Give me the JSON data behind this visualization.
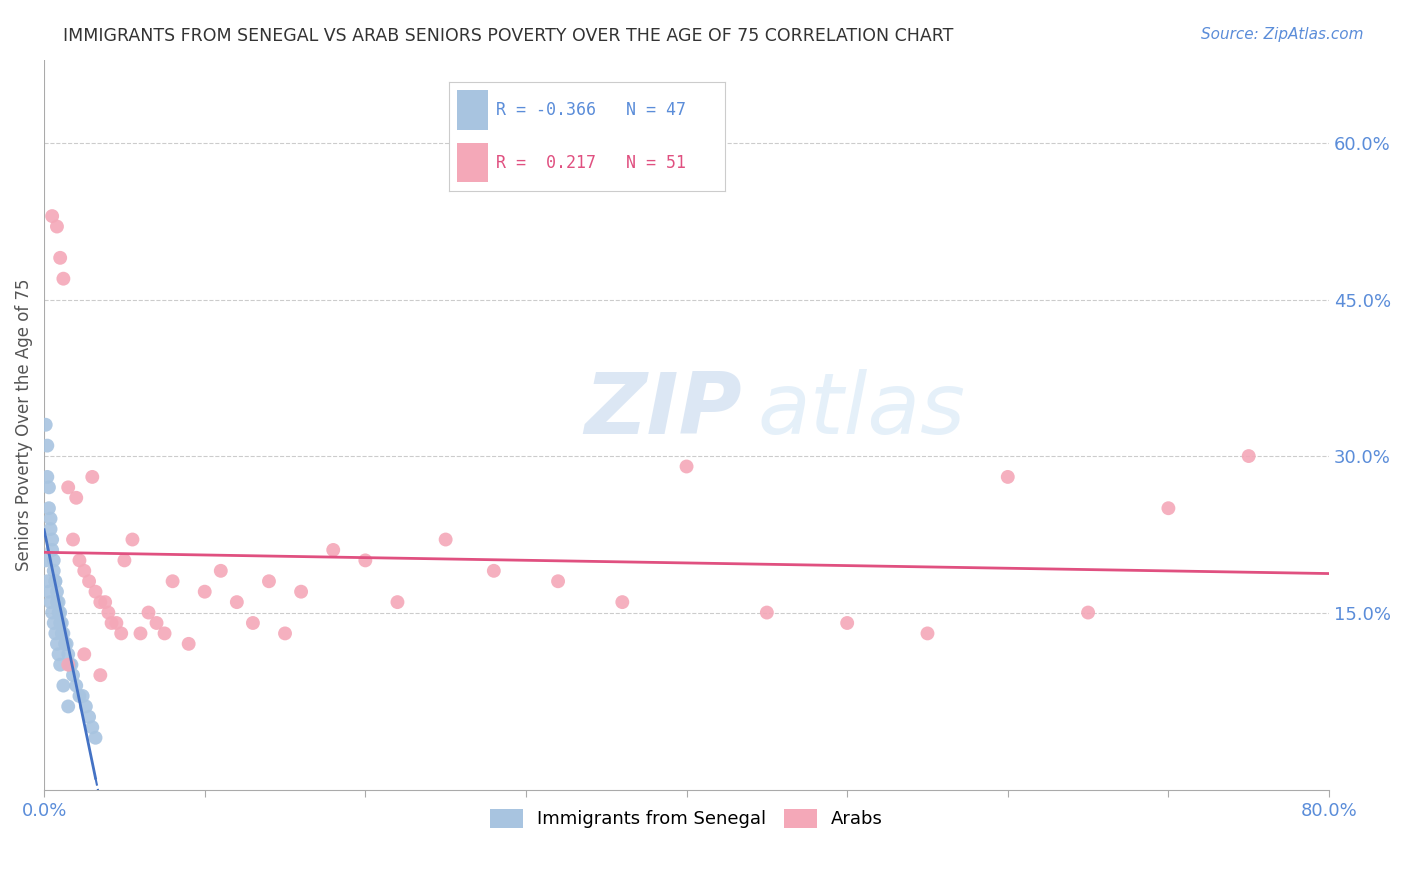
{
  "title": "IMMIGRANTS FROM SENEGAL VS ARAB SENIORS POVERTY OVER THE AGE OF 75 CORRELATION CHART",
  "source": "Source: ZipAtlas.com",
  "ylabel": "Seniors Poverty Over the Age of 75",
  "xlim": [
    0.0,
    0.8
  ],
  "ylim": [
    -0.02,
    0.68
  ],
  "x_ticks": [
    0.0,
    0.1,
    0.2,
    0.3,
    0.4,
    0.5,
    0.6,
    0.7,
    0.8
  ],
  "x_tick_labels_show": {
    "0.0": "0.0%",
    "0.8": "80.0%"
  },
  "y_ticks_right": [
    0.15,
    0.3,
    0.45,
    0.6
  ],
  "y_tick_labels_right": [
    "15.0%",
    "30.0%",
    "45.0%",
    "60.0%"
  ],
  "grid_color": "#cccccc",
  "background_color": "#ffffff",
  "senegal_color": "#a8c4e0",
  "arabs_color": "#f4a8b8",
  "senegal_line_color": "#4472c4",
  "arabs_line_color": "#e05080",
  "senegal_R": -0.366,
  "senegal_N": 47,
  "arabs_R": 0.217,
  "arabs_N": 51,
  "watermark_zip": "ZIP",
  "watermark_atlas": "atlas",
  "legend_label_senegal": "Immigrants from Senegal",
  "legend_label_arabs": "Arabs",
  "senegal_x": [
    0.001,
    0.002,
    0.002,
    0.003,
    0.003,
    0.004,
    0.004,
    0.005,
    0.005,
    0.006,
    0.006,
    0.007,
    0.007,
    0.008,
    0.008,
    0.009,
    0.009,
    0.01,
    0.01,
    0.011,
    0.011,
    0.012,
    0.013,
    0.014,
    0.015,
    0.016,
    0.017,
    0.018,
    0.02,
    0.022,
    0.024,
    0.026,
    0.028,
    0.03,
    0.032,
    0.001,
    0.002,
    0.003,
    0.004,
    0.005,
    0.006,
    0.007,
    0.008,
    0.009,
    0.01,
    0.012,
    0.015
  ],
  "senegal_y": [
    0.33,
    0.31,
    0.28,
    0.27,
    0.25,
    0.24,
    0.23,
    0.22,
    0.21,
    0.2,
    0.19,
    0.18,
    0.18,
    0.17,
    0.16,
    0.16,
    0.15,
    0.15,
    0.14,
    0.14,
    0.13,
    0.13,
    0.12,
    0.12,
    0.11,
    0.1,
    0.1,
    0.09,
    0.08,
    0.07,
    0.07,
    0.06,
    0.05,
    0.04,
    0.03,
    0.2,
    0.18,
    0.17,
    0.16,
    0.15,
    0.14,
    0.13,
    0.12,
    0.11,
    0.1,
    0.08,
    0.06
  ],
  "arabs_x": [
    0.005,
    0.008,
    0.01,
    0.012,
    0.015,
    0.018,
    0.02,
    0.022,
    0.025,
    0.028,
    0.03,
    0.032,
    0.035,
    0.038,
    0.04,
    0.042,
    0.045,
    0.048,
    0.05,
    0.055,
    0.06,
    0.065,
    0.07,
    0.075,
    0.08,
    0.09,
    0.1,
    0.11,
    0.12,
    0.13,
    0.14,
    0.15,
    0.16,
    0.18,
    0.2,
    0.22,
    0.25,
    0.28,
    0.32,
    0.36,
    0.4,
    0.45,
    0.5,
    0.55,
    0.6,
    0.65,
    0.7,
    0.75,
    0.015,
    0.025,
    0.035
  ],
  "arabs_y": [
    0.53,
    0.52,
    0.49,
    0.47,
    0.27,
    0.22,
    0.26,
    0.2,
    0.19,
    0.18,
    0.28,
    0.17,
    0.16,
    0.16,
    0.15,
    0.14,
    0.14,
    0.13,
    0.2,
    0.22,
    0.13,
    0.15,
    0.14,
    0.13,
    0.18,
    0.12,
    0.17,
    0.19,
    0.16,
    0.14,
    0.18,
    0.13,
    0.17,
    0.21,
    0.2,
    0.16,
    0.22,
    0.19,
    0.18,
    0.16,
    0.29,
    0.15,
    0.14,
    0.13,
    0.28,
    0.15,
    0.25,
    0.3,
    0.1,
    0.11,
    0.09
  ]
}
